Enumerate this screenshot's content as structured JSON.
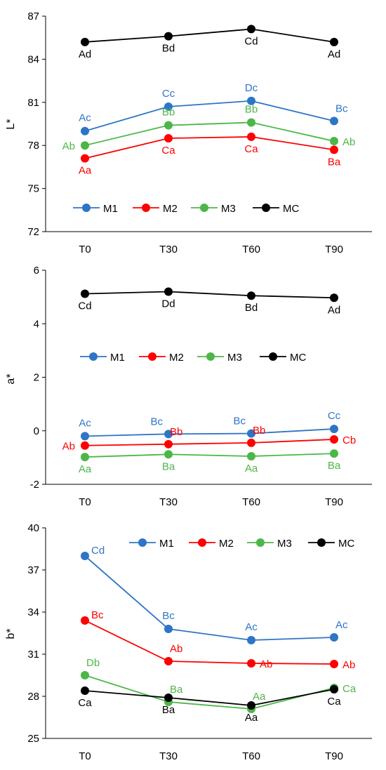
{
  "colors": {
    "M1": "#2e75c6",
    "M2": "#ff0000",
    "M3": "#4cb748",
    "MC": "#000000"
  },
  "chart_data": [
    {
      "type": "line",
      "ylabel": "L*",
      "xlabel": "",
      "categories": [
        "T0",
        "T30",
        "T60",
        "T90"
      ],
      "ylim": [
        72,
        87
      ],
      "yticks": [
        72,
        75,
        78,
        81,
        84,
        87
      ],
      "grid": false,
      "legend": {
        "position": "bottom-center",
        "entries": [
          "M1",
          "M2",
          "M3",
          "MC"
        ]
      },
      "series": [
        {
          "name": "M1",
          "values": [
            79.0,
            80.7,
            81.1,
            79.7
          ],
          "labels": [
            "Ac",
            "Cc",
            "Dc",
            "Bc"
          ],
          "label_side": [
            "above",
            "above",
            "above",
            "above-right"
          ]
        },
        {
          "name": "M2",
          "values": [
            77.1,
            78.5,
            78.6,
            77.7
          ],
          "labels": [
            "Aa",
            "Ca",
            "Ca",
            "Ba"
          ],
          "label_side": [
            "below",
            "below",
            "below",
            "below"
          ]
        },
        {
          "name": "M3",
          "values": [
            78.0,
            79.4,
            79.6,
            78.3
          ],
          "labels": [
            "Ab",
            "Bb",
            "Bb",
            "Ab"
          ],
          "label_side": [
            "left",
            "above",
            "above",
            "right"
          ]
        },
        {
          "name": "MC",
          "values": [
            85.2,
            85.6,
            86.1,
            85.2
          ],
          "labels": [
            "Ad",
            "Bd",
            "Cd",
            "Ad"
          ],
          "label_side": [
            "below",
            "below",
            "below",
            "below"
          ]
        }
      ]
    },
    {
      "type": "line",
      "ylabel": "a*",
      "xlabel": "",
      "categories": [
        "T0",
        "T30",
        "T60",
        "T90"
      ],
      "ylim": [
        -2,
        6
      ],
      "yticks": [
        -2,
        0,
        2,
        4,
        6
      ],
      "grid": false,
      "legend": {
        "position": "middle-center",
        "entries": [
          "M1",
          "M2",
          "M3",
          "MC"
        ]
      },
      "series": [
        {
          "name": "M1",
          "values": [
            -0.2,
            -0.12,
            -0.1,
            0.07
          ],
          "labels": [
            "Ac",
            "Bc",
            "Bc",
            "Cc"
          ],
          "label_side": [
            "above",
            "above-left",
            "above-left",
            "above"
          ]
        },
        {
          "name": "M2",
          "values": [
            -0.55,
            -0.5,
            -0.45,
            -0.32
          ],
          "labels": [
            "Ab",
            "Bb",
            "Bb",
            "Cb"
          ],
          "label_side": [
            "left",
            "above-right",
            "above-right",
            "right"
          ]
        },
        {
          "name": "M3",
          "values": [
            -0.98,
            -0.88,
            -0.95,
            -0.85
          ],
          "labels": [
            "Aa",
            "Ba",
            "Aa",
            "Ba"
          ],
          "label_side": [
            "below",
            "below",
            "below",
            "below"
          ]
        },
        {
          "name": "MC",
          "values": [
            5.12,
            5.2,
            5.05,
            4.97
          ],
          "labels": [
            "Cd",
            "Dd",
            "Bd",
            "Ad"
          ],
          "label_side": [
            "below",
            "below",
            "below",
            "below"
          ]
        }
      ]
    },
    {
      "type": "line",
      "ylabel": "b*",
      "xlabel": "",
      "categories": [
        "T0",
        "T30",
        "T60",
        "T90"
      ],
      "ylim": [
        25,
        40
      ],
      "yticks": [
        25,
        28,
        31,
        34,
        37,
        40
      ],
      "grid": false,
      "legend": {
        "position": "top-right",
        "entries": [
          "M1",
          "M2",
          "M3",
          "MC"
        ]
      },
      "series": [
        {
          "name": "M1",
          "values": [
            38.0,
            32.8,
            32.0,
            32.2
          ],
          "labels": [
            "Cd",
            "Bc",
            "Ac",
            "Ac"
          ],
          "label_side": [
            "right-above",
            "above",
            "above",
            "above-right"
          ]
        },
        {
          "name": "M2",
          "values": [
            33.4,
            30.5,
            30.35,
            30.3
          ],
          "labels": [
            "Bc",
            "Ab",
            "Ab",
            "Ab"
          ],
          "label_side": [
            "right-above",
            "above-right",
            "right",
            "right"
          ]
        },
        {
          "name": "M3",
          "values": [
            29.5,
            27.6,
            27.1,
            28.6
          ],
          "labels": [
            "Db",
            "Ba",
            "Aa",
            "Ca"
          ],
          "label_side": [
            "above-right",
            "above-right",
            "above-right",
            "right"
          ]
        },
        {
          "name": "MC",
          "values": [
            28.4,
            27.9,
            27.35,
            28.5
          ],
          "labels": [
            "Ca",
            "Ba",
            "Aa",
            "Ca"
          ],
          "label_side": [
            "below",
            "below",
            "below",
            "below"
          ]
        }
      ]
    }
  ]
}
